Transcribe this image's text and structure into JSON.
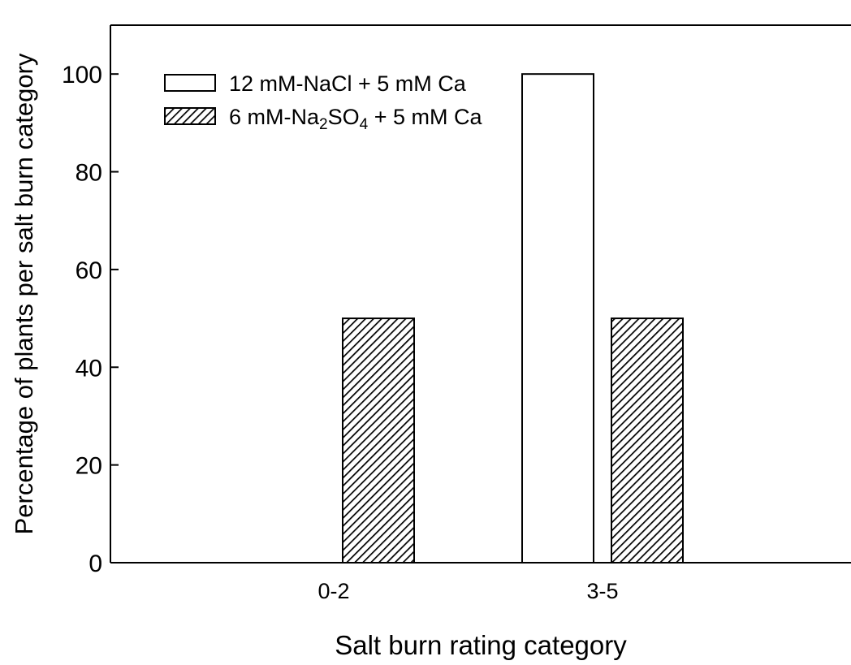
{
  "chart_data": {
    "type": "bar",
    "title": "",
    "xlabel": "Salt burn rating category",
    "ylabel": "Percentage of plants per salt burn category",
    "categories": [
      "0-2",
      "3-5"
    ],
    "series": [
      {
        "name": "12 mM-NaCl + 5 mM Ca",
        "name_parts": [
          {
            "text": "12 mM-NaCl + 5 mM Ca",
            "sub": false
          }
        ],
        "values": [
          0,
          100
        ],
        "fill": "#ffffff",
        "pattern": "none"
      },
      {
        "name": "6 mM-Na2SO4 + 5 mM Ca",
        "name_parts": [
          {
            "text": "6 mM-Na",
            "sub": false
          },
          {
            "text": "2",
            "sub": true
          },
          {
            "text": "SO",
            "sub": false
          },
          {
            "text": "4",
            "sub": true
          },
          {
            "text": " + 5 mM Ca",
            "sub": false
          }
        ],
        "values": [
          50,
          50
        ],
        "fill": "#ffffff",
        "pattern": "diagonal-hatch"
      }
    ],
    "yticks": [
      0,
      20,
      40,
      60,
      80,
      100
    ],
    "ylim": [
      0,
      110
    ],
    "grid": false,
    "legend_position": "top-left",
    "colors": {
      "stroke": "#000000",
      "background": "#ffffff"
    }
  }
}
